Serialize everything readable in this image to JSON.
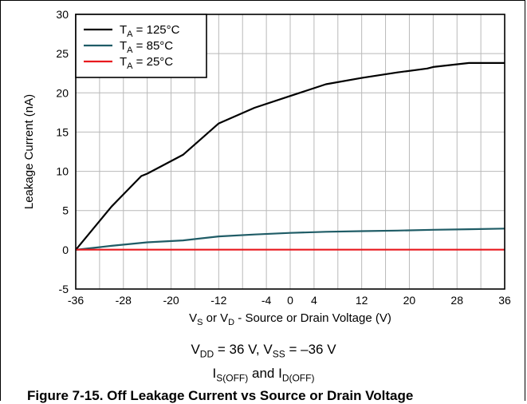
{
  "chart_data": {
    "type": "line",
    "title": "",
    "xlabel": {
      "parts": [
        [
          "V",
          "S"
        ],
        [
          " or ",
          ""
        ],
        [
          "V",
          "D"
        ],
        [
          " - Source or Drain Voltage (V)",
          ""
        ]
      ]
    },
    "ylabel": "Leakage Current (nA)",
    "xlim": [
      -36,
      36
    ],
    "ylim": [
      -5,
      30
    ],
    "x_ticks": [
      -36,
      -28,
      -20,
      -12,
      -4,
      0,
      4,
      12,
      20,
      28,
      36
    ],
    "x_tick_labels": [
      "-36",
      "-28",
      "-20",
      "-12",
      "-4",
      "0",
      "4",
      "12",
      "20",
      "28",
      "36"
    ],
    "x_grid_step": 4,
    "y_ticks": [
      -5,
      0,
      5,
      10,
      15,
      20,
      25,
      30
    ],
    "y_tick_labels": [
      "-5",
      "0",
      "5",
      "10",
      "15",
      "20",
      "25",
      "30"
    ],
    "grid": true,
    "legend_position": "top-left",
    "series": [
      {
        "name": "T_A = 125°C",
        "label_main": "T",
        "label_sub": "A",
        "label_rest": " = 125°C",
        "color": "#000000",
        "x": [
          -36,
          -30,
          -25,
          -24,
          -18,
          -12,
          -6,
          0,
          6,
          12,
          18,
          23,
          24,
          30,
          36
        ],
        "y": [
          0,
          5.5,
          9.4,
          9.7,
          12.1,
          16.1,
          18.1,
          19.6,
          21.1,
          21.9,
          22.6,
          23.1,
          23.3,
          23.8,
          23.8
        ]
      },
      {
        "name": "T_A = 85°C",
        "label_main": "T",
        "label_sub": "A",
        "label_rest": " = 85°C",
        "color": "#1f5c66",
        "x": [
          -36,
          -30,
          -24,
          -18,
          -12,
          -6,
          0,
          6,
          12,
          18,
          24,
          30,
          36
        ],
        "y": [
          0,
          0.5,
          0.95,
          1.2,
          1.7,
          1.95,
          2.15,
          2.3,
          2.38,
          2.45,
          2.55,
          2.62,
          2.7
        ]
      },
      {
        "name": "T_A = 25°C",
        "label_main": "T",
        "label_sub": "A",
        "label_rest": " = 25°C",
        "color": "#e8191e",
        "x": [
          -36,
          36
        ],
        "y": [
          0.02,
          0.02
        ]
      }
    ]
  },
  "caption": {
    "conditions": {
      "parts": [
        [
          "V",
          "DD"
        ],
        [
          " = 36 V, ",
          ""
        ],
        [
          "V",
          "SS"
        ],
        [
          " = –36 V",
          ""
        ]
      ]
    },
    "currents": {
      "parts": [
        [
          "I",
          "S(OFF)"
        ],
        [
          " and ",
          ""
        ],
        [
          "I",
          "D(OFF)"
        ]
      ]
    },
    "figure_title": "Figure 7-15. Off Leakage Current vs Source or Drain Voltage"
  }
}
